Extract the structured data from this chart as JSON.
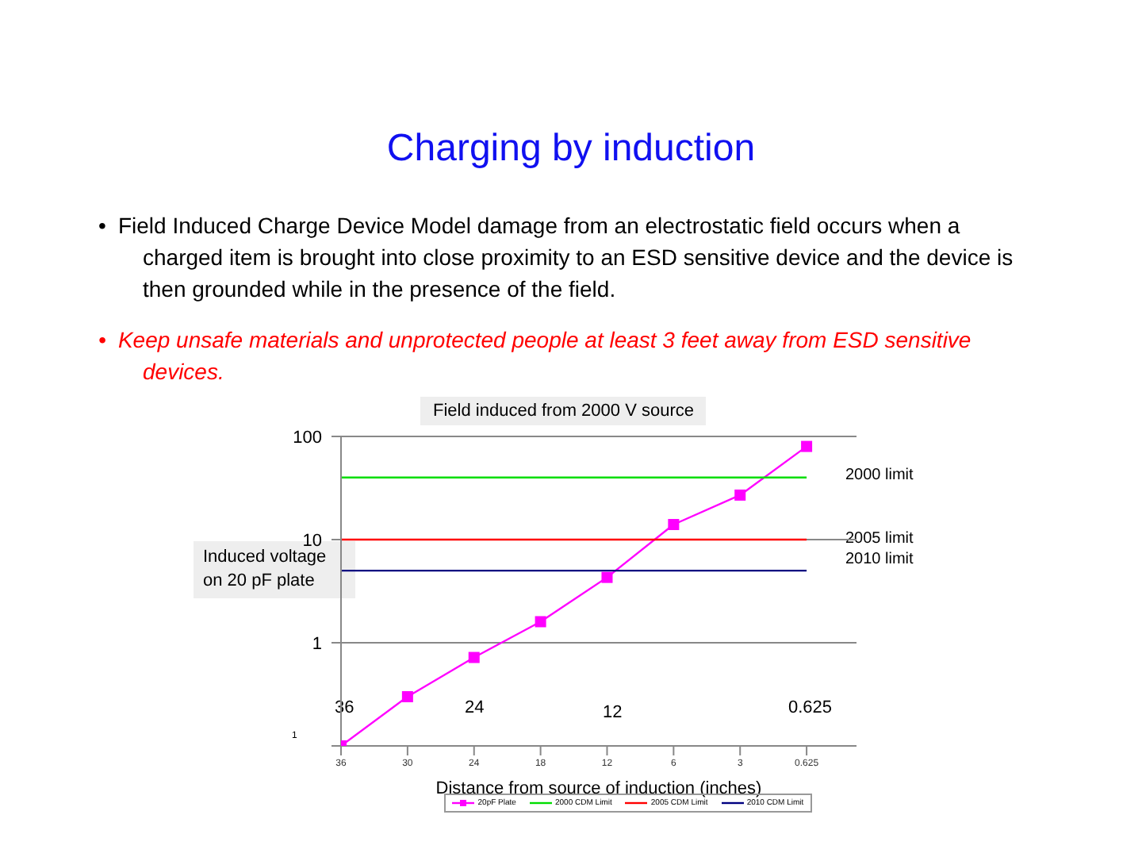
{
  "chart_data": {
    "type": "line",
    "title": "Charging by induction",
    "subtitle": "Field induced from 2000 V source",
    "xlabel": "Distance from source of induction (inches)",
    "ylabel": "Induced voltage on 20 pF plate",
    "categories": [
      "36",
      "30",
      "24",
      "18",
      "12",
      "6",
      "3",
      "0.625"
    ],
    "series": [
      {
        "name": "20pF Plate",
        "color": "#ff00ff",
        "values": [
          0.1,
          0.3,
          0.72,
          1.6,
          4.3,
          14,
          27,
          80
        ],
        "marker": "square"
      },
      {
        "name": "2000 CDM Limit",
        "color": "#00dd00",
        "values": [
          40,
          40,
          40,
          40,
          40,
          40,
          40,
          40
        ],
        "marker": "none"
      },
      {
        "name": "2005 CDM Limit",
        "color": "#ff0000",
        "values": [
          10,
          10,
          10,
          10,
          10,
          10,
          10,
          10
        ],
        "marker": "none"
      },
      {
        "name": "2010 CDM Limit",
        "color": "#000080",
        "values": [
          5,
          5,
          5,
          5,
          5,
          5,
          5,
          5
        ],
        "marker": "none"
      }
    ],
    "log": "y",
    "ylim": [
      0.1,
      100
    ],
    "yticks": [
      {
        "value": 0.1,
        "label": null
      },
      1,
      10,
      100
    ],
    "grid": "y",
    "legend": "bottom",
    "annotations": [
      "•\tField Induced Charge Device Model damage from an electrostatic field occurs when a charged item is brought into close proximity to an ESD sensitive device and the device is then grounded while in the presence of the field.",
      "•\tKeep unsafe materials and unprotected people at least 3 feet away from ESD sensitive devices.",
      "36",
      "24",
      "12",
      "0.625",
      "2000 limit",
      "2005 limit",
      "2010 limit",
      "1"
    ]
  }
}
